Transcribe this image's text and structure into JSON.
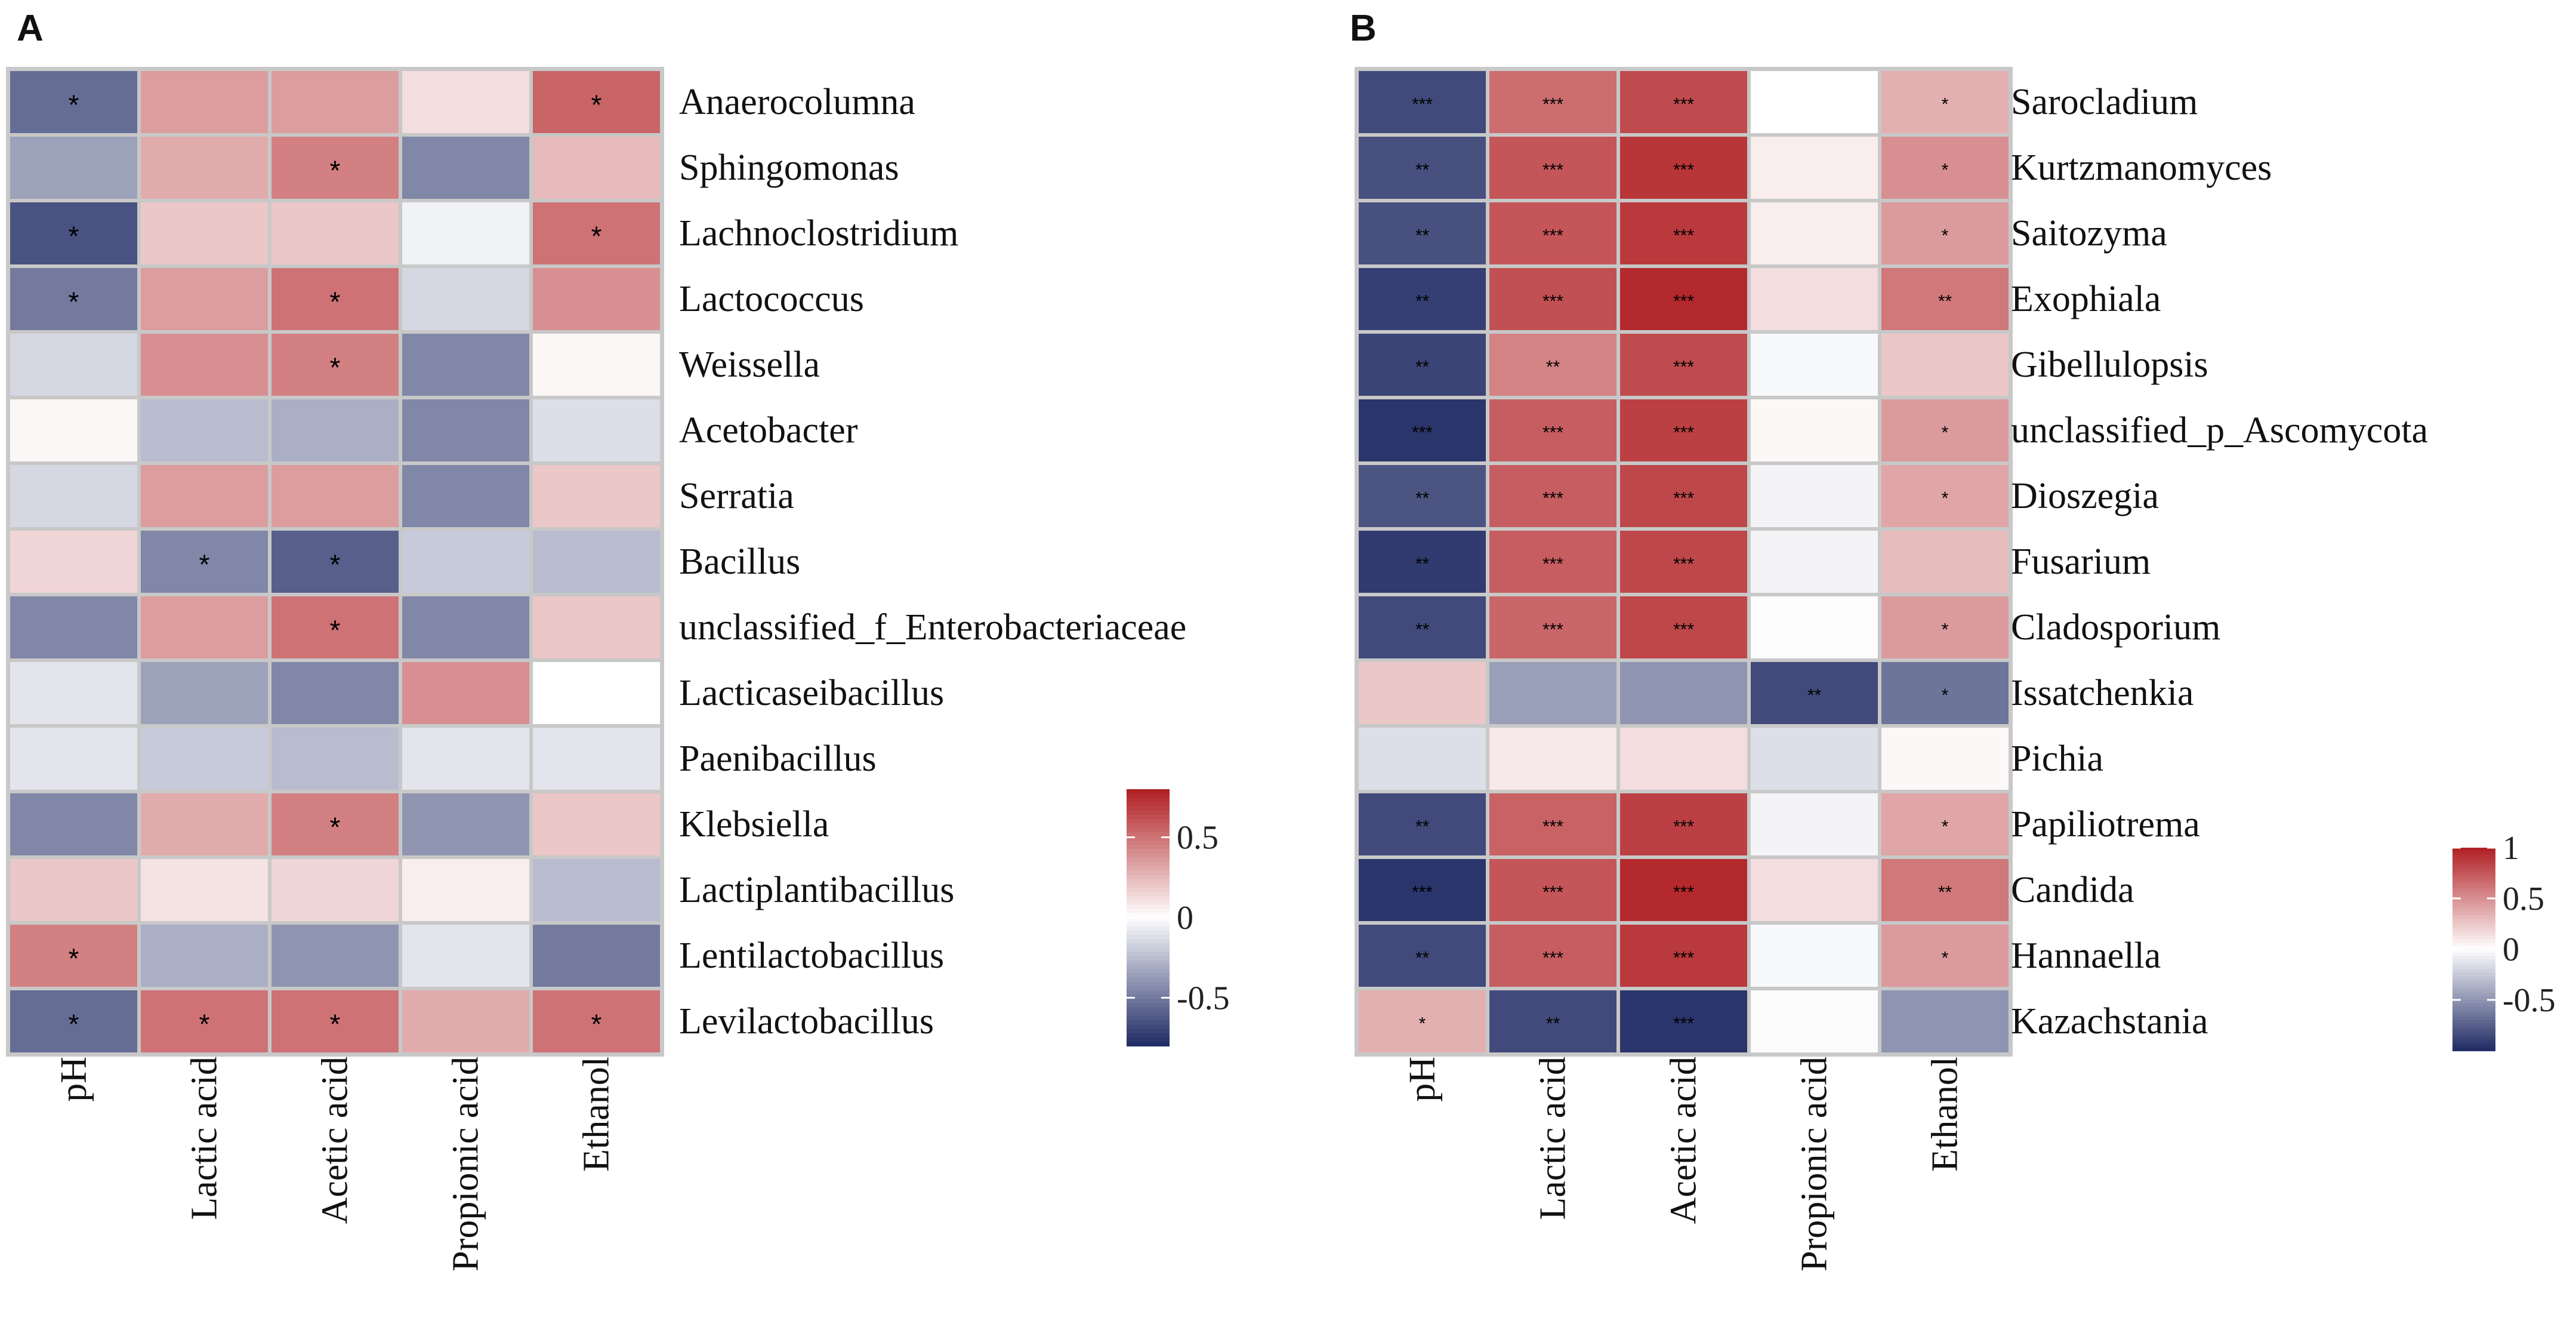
{
  "chart_data": [
    {
      "type": "heatmap",
      "panel_label": "A",
      "columns": [
        "pH",
        "Lactic acid",
        "Acetic acid",
        "Propionic acid",
        "Ethanol"
      ],
      "rows": [
        "Anaerocolumna",
        "Sphingomonas",
        "Lachnoclostridium",
        "Lactococcus",
        "Weissella",
        "Acetobacter",
        "Serratia",
        "Bacillus",
        "unclassified_f_Enterobacteriaceae",
        "Lacticaseibacillus",
        "Paenibacillus",
        "Klebsiella",
        "Lactiplantibacillus",
        "Lentilactobacillus",
        "Levilactobacillus"
      ],
      "values": [
        [
          -0.55,
          0.35,
          0.35,
          0.12,
          0.55
        ],
        [
          -0.35,
          0.3,
          0.45,
          -0.45,
          0.25
        ],
        [
          -0.65,
          0.2,
          0.2,
          -0.05,
          0.5
        ],
        [
          -0.5,
          0.35,
          0.5,
          -0.15,
          0.4
        ],
        [
          -0.15,
          0.4,
          0.45,
          -0.45,
          0.03
        ],
        [
          0.03,
          -0.25,
          -0.3,
          -0.45,
          -0.12
        ],
        [
          -0.15,
          0.35,
          0.35,
          -0.45,
          0.2
        ],
        [
          0.15,
          -0.45,
          -0.6,
          -0.2,
          -0.25
        ],
        [
          -0.45,
          0.35,
          0.5,
          -0.45,
          0.2
        ],
        [
          -0.1,
          -0.35,
          -0.45,
          0.4,
          0.0
        ],
        [
          -0.1,
          -0.2,
          -0.25,
          -0.1,
          -0.1
        ],
        [
          -0.45,
          0.3,
          0.45,
          -0.4,
          0.2
        ],
        [
          0.2,
          0.1,
          0.15,
          0.06,
          -0.25
        ],
        [
          0.45,
          -0.3,
          -0.4,
          -0.1,
          -0.5
        ],
        [
          -0.55,
          0.5,
          0.5,
          0.3,
          0.5
        ]
      ],
      "significance": [
        [
          "*",
          "",
          "",
          "",
          "*"
        ],
        [
          "",
          "",
          "*",
          "",
          ""
        ],
        [
          "*",
          "",
          "",
          "",
          "*"
        ],
        [
          "*",
          "",
          "*",
          "",
          ""
        ],
        [
          "",
          "",
          "*",
          "",
          ""
        ],
        [
          "",
          "",
          "",
          "",
          ""
        ],
        [
          "",
          "",
          "",
          "",
          ""
        ],
        [
          "",
          "*",
          "*",
          "",
          ""
        ],
        [
          "",
          "",
          "*",
          "",
          ""
        ],
        [
          "",
          "",
          "",
          "",
          ""
        ],
        [
          "",
          "",
          "",
          "",
          ""
        ],
        [
          "",
          "",
          "*",
          "",
          ""
        ],
        [
          "",
          "",
          "",
          "",
          ""
        ],
        [
          "*",
          "",
          "",
          "",
          ""
        ],
        [
          "*",
          "*",
          "*",
          "",
          "*"
        ]
      ],
      "colorbar": {
        "range": [
          -0.8,
          0.8
        ],
        "ticks": [
          {
            "value": 0.5,
            "label": "0.5"
          },
          {
            "value": 0,
            "label": "0"
          },
          {
            "value": -0.5,
            "label": "-0.5"
          }
        ]
      }
    },
    {
      "type": "heatmap",
      "panel_label": "B",
      "columns": [
        "pH",
        "Lactic acid",
        "Acetic acid",
        "Propionic acid",
        "Ethanol"
      ],
      "rows": [
        "Sarocladium",
        "Kurtzmanomyces",
        "Saitozyma",
        "Exophiala",
        "Gibellulopsis",
        "unclassified_p_Ascomycota",
        "Dioszegia",
        "Fusarium",
        "Cladosporium",
        "Issatchenkia",
        "Pichia",
        "Papiliotrema",
        "Candida",
        "Hannaella",
        "Kazachstania"
      ],
      "values": [
        [
          -0.85,
          0.65,
          0.8,
          0.0,
          0.35
        ],
        [
          -0.82,
          0.75,
          0.9,
          0.08,
          0.5
        ],
        [
          -0.82,
          0.75,
          0.88,
          0.08,
          0.45
        ],
        [
          -0.9,
          0.78,
          0.95,
          0.15,
          0.6
        ],
        [
          -0.88,
          0.55,
          0.8,
          -0.03,
          0.25
        ],
        [
          -0.95,
          0.72,
          0.85,
          0.03,
          0.45
        ],
        [
          -0.8,
          0.72,
          0.82,
          -0.05,
          0.4
        ],
        [
          -0.92,
          0.72,
          0.82,
          -0.05,
          0.3
        ],
        [
          -0.85,
          0.68,
          0.82,
          0.01,
          0.45
        ],
        [
          0.25,
          -0.45,
          -0.5,
          -0.85,
          -0.65
        ],
        [
          -0.15,
          0.1,
          0.15,
          -0.15,
          0.03
        ],
        [
          -0.85,
          0.7,
          0.85,
          -0.05,
          0.4
        ],
        [
          -0.95,
          0.75,
          0.95,
          0.15,
          0.6
        ],
        [
          -0.85,
          0.72,
          0.88,
          -0.03,
          0.45
        ],
        [
          0.35,
          -0.85,
          -0.95,
          -0.02,
          -0.5
        ]
      ],
      "significance": [
        [
          "***",
          "***",
          "***",
          "",
          "*"
        ],
        [
          "**",
          "***",
          "***",
          "",
          "*"
        ],
        [
          "**",
          "***",
          "***",
          "",
          "*"
        ],
        [
          "**",
          "***",
          "***",
          "",
          "**"
        ],
        [
          "**",
          "**",
          "***",
          "",
          ""
        ],
        [
          "***",
          "***",
          "***",
          "",
          "*"
        ],
        [
          "**",
          "***",
          "***",
          "",
          "*"
        ],
        [
          "**",
          "***",
          "***",
          "",
          ""
        ],
        [
          "**",
          "***",
          "***",
          "",
          "*"
        ],
        [
          "",
          "",
          "",
          "**",
          "*"
        ],
        [
          "",
          "",
          "",
          "",
          ""
        ],
        [
          "**",
          "***",
          "***",
          "",
          "*"
        ],
        [
          "***",
          "***",
          "***",
          "",
          "**"
        ],
        [
          "**",
          "***",
          "***",
          "",
          "*"
        ],
        [
          "*",
          "**",
          "***",
          "",
          ""
        ]
      ],
      "colorbar": {
        "range": [
          -1,
          1
        ],
        "ticks": [
          {
            "value": 1,
            "label": "1"
          },
          {
            "value": 0.5,
            "label": "0.5"
          },
          {
            "value": 0,
            "label": "0"
          },
          {
            "value": -0.5,
            "label": "-0.5"
          }
        ]
      }
    }
  ],
  "colors": {
    "negative": "#1f2a63",
    "neutral": "#ffffff",
    "positive": "#b01e22",
    "cell_border": "#c8c8c8"
  }
}
